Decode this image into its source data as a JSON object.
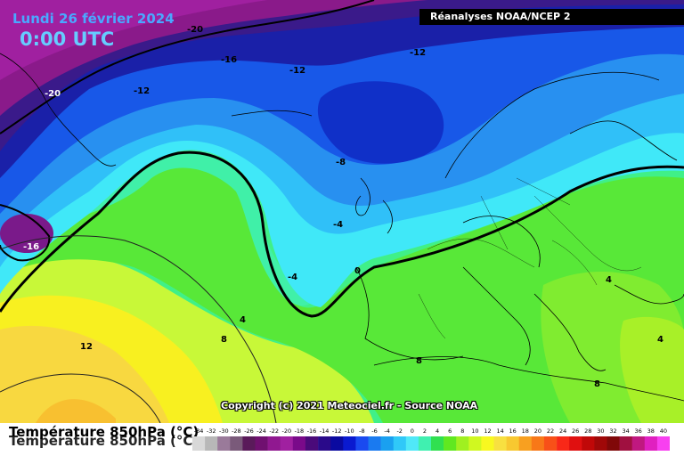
{
  "header": {
    "date": "Lundi 26 février 2024",
    "time": "0:00 UTC",
    "source": "Réanalyses NOAA/NCEP 2"
  },
  "footer": {
    "copyright": "Copyright (c) 2021 Meteociel.fr - Source NOAA",
    "legend_title": "Température 850hPa (°C)"
  },
  "map": {
    "isotherm_labels": [
      {
        "text": "-20"
      },
      {
        "text": "-16"
      },
      {
        "text": "-12"
      },
      {
        "text": "-12"
      },
      {
        "text": "-20"
      },
      {
        "text": "-12"
      },
      {
        "text": "-8"
      },
      {
        "text": "-4"
      },
      {
        "text": "-16"
      },
      {
        "text": "-4"
      },
      {
        "text": "0"
      },
      {
        "text": "4"
      },
      {
        "text": "12"
      },
      {
        "text": "8"
      },
      {
        "text": "8"
      },
      {
        "text": "4"
      },
      {
        "text": "4"
      },
      {
        "text": "8"
      }
    ]
  },
  "scale": {
    "values": [
      "-34",
      "-32",
      "-30",
      "-28",
      "-26",
      "-24",
      "-22",
      "-20",
      "-18",
      "-16",
      "-14",
      "-12",
      "-10",
      "-8",
      "-6",
      "-4",
      "-2",
      "0",
      "2",
      "4",
      "6",
      "8",
      "10",
      "12",
      "14",
      "16",
      "18",
      "20",
      "22",
      "24",
      "26",
      "28",
      "30",
      "32",
      "34",
      "36",
      "38",
      "40"
    ],
    "colors": [
      "#d8d8d8",
      "#b8b8b8",
      "#9a7a9a",
      "#7a5a7a",
      "#5a1a5a",
      "#701070",
      "#901890",
      "#a020a0",
      "#7a0a8a",
      "#4a0a7a",
      "#2a0a8a",
      "#0a0aa0",
      "#0a1ad0",
      "#1a4af0",
      "#1a7af0",
      "#1aa0f0",
      "#30c8f8",
      "#50e8f8",
      "#40f0b0",
      "#30e050",
      "#60e820",
      "#a0f020",
      "#d0f820",
      "#f8f820",
      "#f8e040",
      "#f8c830",
      "#f8a020",
      "#f87818",
      "#f85018",
      "#f82818",
      "#e01010",
      "#c00808",
      "#a00808",
      "#800808",
      "#a01040",
      "#c01880",
      "#e020c0",
      "#f840f0"
    ]
  }
}
